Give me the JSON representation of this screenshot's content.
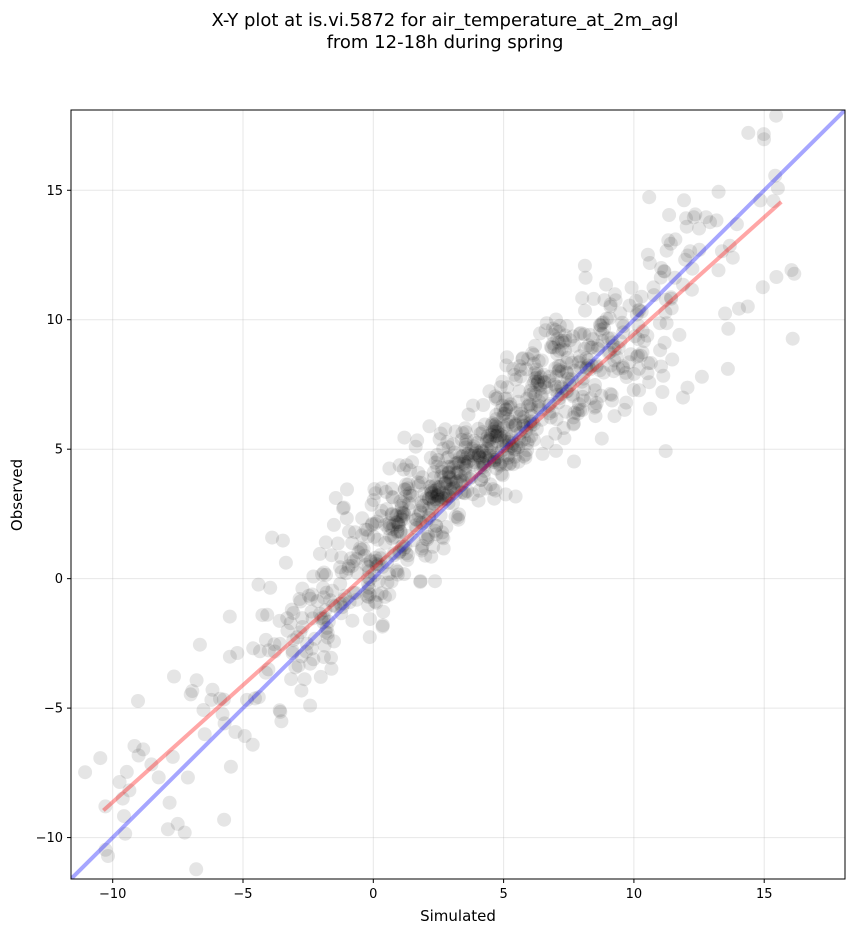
{
  "chart_data": {
    "type": "scatter",
    "title": "X-Y plot at is.vi.5872 for air_temperature_at_2m_agl",
    "subtitle": "from 12-18h during spring",
    "xlabel": "Simulated",
    "ylabel": "Observed",
    "xlim": [
      -11.6,
      18.1
    ],
    "ylim": [
      -11.6,
      18.1
    ],
    "xticks": [
      -10,
      -5,
      0,
      5,
      10,
      15
    ],
    "yticks": [
      -10,
      -5,
      0,
      5,
      10,
      15
    ],
    "grid": true,
    "legend": "none",
    "series": [
      {
        "kind": "points",
        "color": "#000000",
        "opacity": 0.1,
        "center_x": [
          -10.2,
          -9.3,
          -8.5,
          -7.6,
          -6.8,
          -6.0,
          -5.2,
          -4.3,
          -3.5,
          -2.6,
          -1.8,
          -0.9,
          0.0,
          0.8,
          1.6,
          2.5,
          3.3,
          4.2,
          5.0,
          5.8,
          6.7,
          7.5,
          8.3,
          9.2,
          10.0,
          10.9,
          11.7,
          12.6,
          13.5,
          14.3,
          15.2,
          15.6
        ],
        "center_y": [
          -7.8,
          -7.1,
          -6.9,
          -6.3,
          -5.4,
          -4.8,
          -4.2,
          -3.6,
          -2.7,
          -1.9,
          -0.9,
          0.0,
          1.0,
          1.8,
          2.5,
          3.3,
          4.2,
          5.0,
          5.8,
          6.6,
          7.3,
          7.9,
          8.5,
          9.1,
          9.7,
          10.3,
          11.0,
          11.6,
          12.4,
          13.2,
          14.8,
          16.0
        ]
      },
      {
        "kind": "line",
        "description": "1:1 reference",
        "color": "#0000ff",
        "x": [
          -11.6,
          18.1
        ],
        "y": [
          -11.6,
          18.1
        ]
      },
      {
        "kind": "line",
        "description": "regression fit",
        "color": "#ff0000",
        "x": [
          -10.3,
          15.6
        ],
        "y": [
          -8.9,
          14.5
        ]
      }
    ]
  }
}
